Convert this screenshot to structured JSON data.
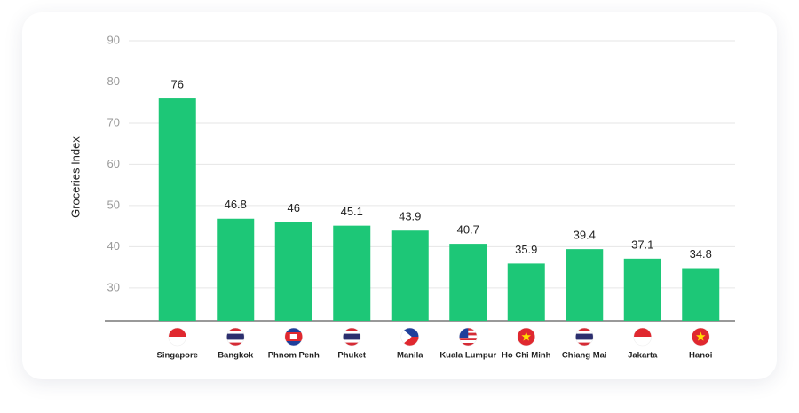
{
  "chart_data": {
    "type": "bar",
    "y_label": "Groceries Index",
    "categories": [
      "Singapore",
      "Bangkok",
      "Phnom Penh",
      "Phuket",
      "Manila",
      "Kuala Lumpur",
      "Ho Chi Minh",
      "Chiang Mai",
      "Jakarta",
      "Hanoi"
    ],
    "values": [
      76,
      46.8,
      46,
      45.1,
      43.9,
      40.7,
      35.9,
      39.4,
      37.1,
      34.8
    ],
    "color": "#1dc777",
    "ylim": [
      22,
      90
    ],
    "yticks": [
      30,
      40,
      50,
      60,
      70,
      80,
      90
    ],
    "grid": true
  }
}
